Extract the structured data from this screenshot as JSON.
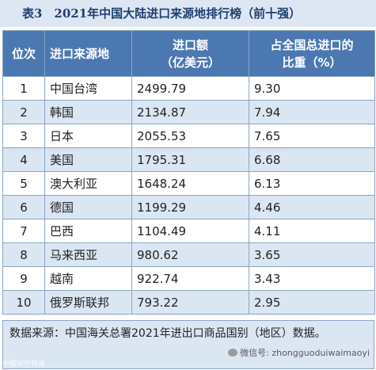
{
  "title": "表3　2021年中国大陆进口来源地排行榜（前十强）",
  "headers": {
    "rank": "位次",
    "source": "进口来源地",
    "amount_line1": "进口额",
    "amount_line2": "（亿美元）",
    "share_line1": "占全国总进口的",
    "share_line2": "比重（%）"
  },
  "rows": [
    {
      "rank": "1",
      "source": "中国台湾",
      "amount": "2499.79",
      "share": "9.30"
    },
    {
      "rank": "2",
      "source": "韩国",
      "amount": "2134.87",
      "share": "7.94"
    },
    {
      "rank": "3",
      "source": "日本",
      "amount": "2055.53",
      "share": "7.65"
    },
    {
      "rank": "4",
      "source": "美国",
      "amount": "1795.31",
      "share": "6.68"
    },
    {
      "rank": "5",
      "source": "澳大利亚",
      "amount": "1648.24",
      "share": "6.13"
    },
    {
      "rank": "6",
      "source": "德国",
      "amount": "1199.29",
      "share": "4.46"
    },
    {
      "rank": "7",
      "source": "巴西",
      "amount": "1104.49",
      "share": "4.11"
    },
    {
      "rank": "8",
      "source": "马来西亚",
      "amount": "980.62",
      "share": "3.65"
    },
    {
      "rank": "9",
      "source": "越南",
      "amount": "922.74",
      "share": "3.43"
    },
    {
      "rank": "10",
      "source": "俄罗斯联邦",
      "amount": "793.22",
      "share": "2.95"
    }
  ],
  "note": "数据来源：中国海关总署2021年进出口商品国别（地区）数据。",
  "watermark": "微信号: zhongguoduiwaimaoyi",
  "watermark_left": "中国对外贸易",
  "colors": {
    "header_bg": "#4b78b1",
    "title_bg": "#dde7f3",
    "title_text": "#1f3f6e",
    "row_alt": "#dbe6f3",
    "border": "#8aa5c4"
  },
  "icons": [
    "wechat-icon"
  ]
}
